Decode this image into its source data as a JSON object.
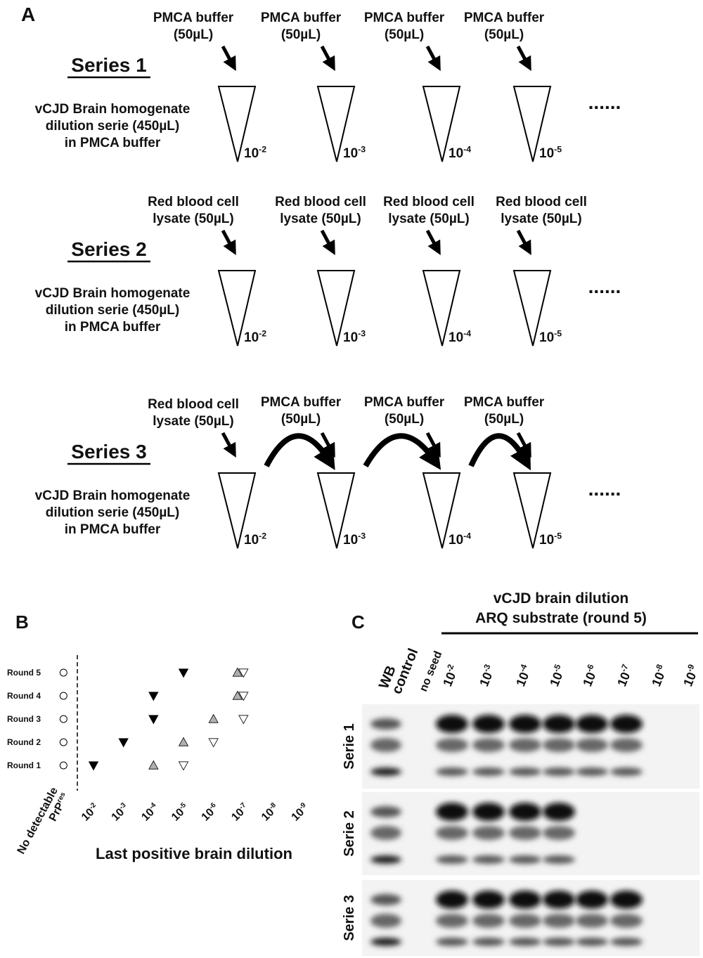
{
  "panel_a": {
    "label": "A",
    "series": [
      {
        "title": "Series 1",
        "description": [
          "vCJD Brain homogenate",
          "dilution serie (450µL)",
          "in PMCA buffer"
        ],
        "additions": [
          [
            "PMCA buffer",
            "(50µL)"
          ],
          [
            "PMCA buffer",
            "(50µL)"
          ],
          [
            "PMCA buffer",
            "(50µL)"
          ],
          [
            "PMCA buffer",
            "(50µL)"
          ]
        ],
        "dilutions": [
          {
            "base": "10",
            "exp": "-2"
          },
          {
            "base": "10",
            "exp": "-3"
          },
          {
            "base": "10",
            "exp": "-4"
          },
          {
            "base": "10",
            "exp": "-5"
          }
        ],
        "more": "......"
      },
      {
        "title": "Series 2",
        "description": [
          "vCJD Brain homogenate",
          "dilution serie (450µL)",
          "in PMCA buffer"
        ],
        "additions": [
          [
            "Red blood cell",
            "lysate (50µL)"
          ],
          [
            "Red blood cell",
            "lysate (50µL)"
          ],
          [
            "Red blood cell",
            "lysate (50µL)"
          ],
          [
            "Red blood cell",
            "lysate (50µL)"
          ]
        ],
        "dilutions": [
          {
            "base": "10",
            "exp": "-2"
          },
          {
            "base": "10",
            "exp": "-3"
          },
          {
            "base": "10",
            "exp": "-4"
          },
          {
            "base": "10",
            "exp": "-5"
          }
        ],
        "more": "......"
      },
      {
        "title": "Series 3",
        "description": [
          "vCJD Brain homogenate",
          "dilution serie (450µL)",
          "in PMCA buffer"
        ],
        "additions": [
          [
            "Red blood cell",
            "lysate (50µL)"
          ],
          [
            "PMCA buffer",
            "(50µL)"
          ],
          [
            "PMCA buffer",
            "(50µL)"
          ],
          [
            "PMCA buffer",
            "(50µL)"
          ]
        ],
        "dilutions": [
          {
            "base": "10",
            "exp": "-2"
          },
          {
            "base": "10",
            "exp": "-3"
          },
          {
            "base": "10",
            "exp": "-4"
          },
          {
            "base": "10",
            "exp": "-5"
          }
        ],
        "more": "......"
      }
    ]
  },
  "panel_b": {
    "label": "B",
    "x_label": "Last positive brain dilution",
    "rows": [
      "Round 1",
      "Round 2",
      "Round 3",
      "Round 4",
      "Round 5"
    ],
    "xlim": [
      -0.5,
      -9.5
    ],
    "xticks": [
      {
        "value": -1,
        "label": "No detectable",
        "label2": "PrP",
        "sup": "res"
      },
      {
        "value": -2,
        "label": "10",
        "sup": "-2"
      },
      {
        "value": -3,
        "label": "10",
        "sup": "-3"
      },
      {
        "value": -4,
        "label": "10",
        "sup": "-4"
      },
      {
        "value": -5,
        "label": "10",
        "sup": "-5"
      },
      {
        "value": -6,
        "label": "10",
        "sup": "-6"
      },
      {
        "value": -7,
        "label": "10",
        "sup": "-7"
      },
      {
        "value": -8,
        "label": "10",
        "sup": "-8"
      },
      {
        "value": -9,
        "label": "10",
        "sup": "-9"
      }
    ],
    "series": [
      {
        "marker": "circle",
        "fill": "#ffffff",
        "values": [
          -1,
          -1,
          -1,
          -1,
          -1
        ]
      },
      {
        "marker": "triangle-down",
        "fill": "#000000",
        "values": [
          -2,
          -3,
          -4,
          -4,
          -5
        ]
      },
      {
        "marker": "triangle-up",
        "fill": "#b0b0b0",
        "values": [
          -4,
          -5,
          -6,
          -6.8,
          -6.8
        ]
      },
      {
        "marker": "triangle-down",
        "fill": "#ffffff",
        "values": [
          -5,
          -6,
          -7,
          -7,
          -7
        ]
      }
    ]
  },
  "panel_c": {
    "label": "C",
    "title": [
      "vCJD brain dilution",
      "ARQ substrate (round 5)"
    ],
    "wb_control": [
      "WB",
      "control"
    ],
    "no_seed": "no seed",
    "dilutions": [
      {
        "base": "10",
        "exp": "-2"
      },
      {
        "base": "10",
        "exp": "-3"
      },
      {
        "base": "10",
        "exp": "-4"
      },
      {
        "base": "10",
        "exp": "-5"
      },
      {
        "base": "10",
        "exp": "-6"
      },
      {
        "base": "10",
        "exp": "-7"
      },
      {
        "base": "10",
        "exp": "-8"
      },
      {
        "base": "10",
        "exp": "-9"
      }
    ],
    "rows": [
      "Serie 1",
      "Serie 2",
      "Serie 3"
    ]
  }
}
